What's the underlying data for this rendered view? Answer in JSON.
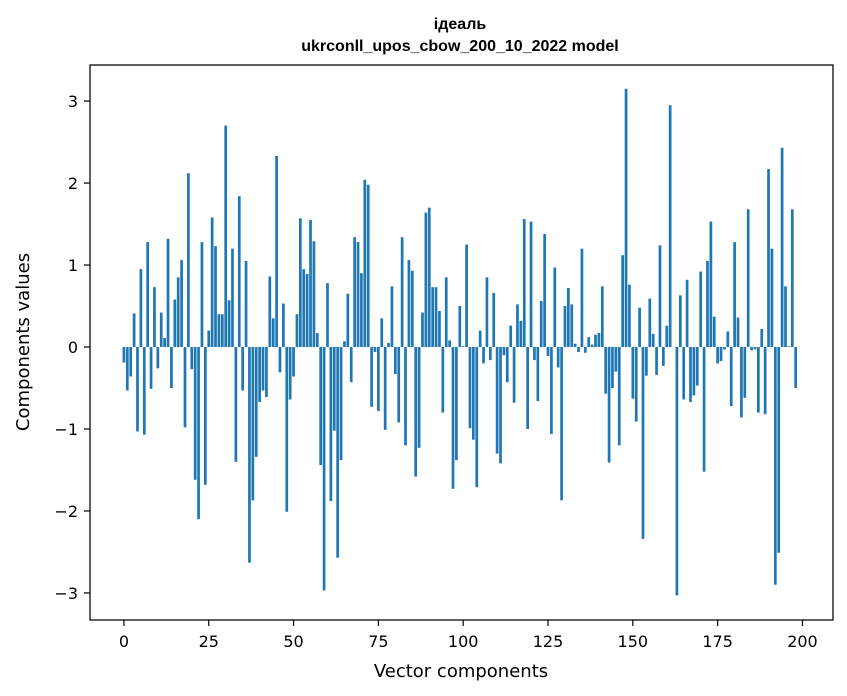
{
  "chart_data": {
    "type": "bar",
    "title": "ідеаль",
    "subtitle": "ukrconll_upos_cbow_200_10_2022 model",
    "xlabel": "Vector components",
    "ylabel": "Components values",
    "xlim": [
      -10,
      209
    ],
    "ylim": [
      -3.33,
      3.44
    ],
    "xticks": [
      0,
      25,
      50,
      75,
      100,
      125,
      150,
      175,
      200
    ],
    "yticks": [
      -3,
      -2,
      -1,
      0,
      1,
      2,
      3
    ],
    "xtick_labels": [
      "0",
      "25",
      "50",
      "75",
      "100",
      "125",
      "150",
      "175",
      "200"
    ],
    "ytick_labels": [
      "−3",
      "−2",
      "−1",
      "0",
      "1",
      "2",
      "3"
    ],
    "bar_color": "#1f77b4",
    "values": [
      -0.19,
      -0.53,
      -0.36,
      0.41,
      -1.03,
      0.95,
      -1.07,
      1.28,
      -0.51,
      0.73,
      -0.26,
      0.42,
      0.11,
      1.32,
      -0.5,
      0.58,
      0.85,
      1.06,
      -0.98,
      2.12,
      -0.27,
      -1.62,
      -2.1,
      1.28,
      -1.68,
      0.2,
      1.58,
      1.23,
      0.4,
      0.4,
      2.7,
      0.57,
      1.2,
      -1.4,
      1.84,
      -0.53,
      1.05,
      -2.63,
      -1.87,
      -1.34,
      -0.67,
      -0.53,
      -0.61,
      0.86,
      0.35,
      2.33,
      -0.31,
      0.53,
      -2.01,
      -0.64,
      -0.36,
      0.4,
      1.57,
      0.95,
      0.89,
      1.55,
      1.29,
      0.17,
      -1.44,
      -2.97,
      0.78,
      -1.88,
      -1.02,
      -2.57,
      -1.38,
      0.07,
      0.65,
      -0.43,
      1.34,
      1.28,
      0.9,
      2.04,
      1.98,
      -0.73,
      -0.06,
      -0.78,
      0.35,
      -1.01,
      0.05,
      0.74,
      -0.33,
      -0.92,
      1.34,
      -1.2,
      1.06,
      0.93,
      -1.58,
      -1.23,
      0.42,
      1.64,
      1.7,
      0.73,
      0.73,
      0.44,
      -0.8,
      0.85,
      0.08,
      -1.73,
      -1.38,
      0.5,
      0.01,
      1.25,
      -0.99,
      -1.13,
      -1.71,
      0.2,
      -0.2,
      0.85,
      -0.16,
      0.66,
      -1.3,
      -1.42,
      -0.1,
      -0.43,
      0.26,
      -0.68,
      0.52,
      0.32,
      1.56,
      -1.0,
      1.53,
      -0.16,
      -0.66,
      0.56,
      1.38,
      -0.11,
      -1.06,
      0.97,
      -0.25,
      -1.87,
      0.5,
      0.72,
      0.52,
      0.04,
      -0.06,
      1.2,
      -0.07,
      0.12,
      0.03,
      0.15,
      0.17,
      0.74,
      -0.57,
      -1.41,
      -0.5,
      -0.3,
      -1.2,
      1.12,
      3.15,
      0.76,
      -0.63,
      -0.91,
      0.48,
      -2.34,
      -0.35,
      0.59,
      0.16,
      -0.34,
      1.24,
      -0.23,
      0.26,
      2.95,
      0.0,
      -3.03,
      0.63,
      -0.64,
      0.82,
      -0.67,
      -0.59,
      -0.47,
      0.92,
      -1.52,
      1.05,
      1.53,
      0.37,
      -0.2,
      -0.17,
      -0.03,
      0.19,
      -0.72,
      1.28,
      0.36,
      -0.86,
      -0.62,
      1.68,
      -0.04,
      -0.03,
      -0.8,
      0.22,
      -0.82,
      2.17,
      1.2,
      -2.9,
      -2.51,
      2.43,
      0.74,
      0.01,
      1.68,
      -0.5
    ]
  }
}
